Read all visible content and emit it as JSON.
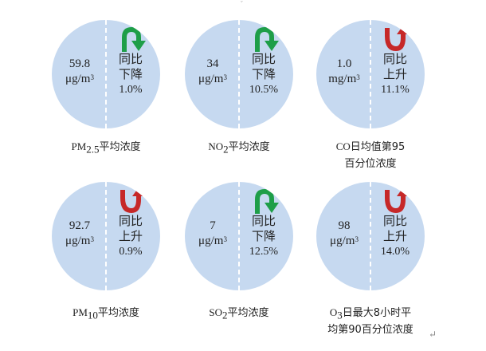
{
  "colors": {
    "circle": "#c6d9f0",
    "down_arrow": "#1e9e48",
    "up_arrow": "#c62828",
    "divider": "#ffffff"
  },
  "change_label": "同比",
  "down_text": "下降",
  "up_text": "上升",
  "items": [
    {
      "value": "59.8",
      "unit": "μg/m",
      "unit_sup": "3",
      "direction": "down",
      "pct": "1.0%",
      "label_pre": "PM",
      "label_sub": "2.5",
      "label_post": "平均浓度",
      "label_line2": ""
    },
    {
      "value": "34",
      "unit": "μg/m",
      "unit_sup": "3",
      "direction": "down",
      "pct": "10.5%",
      "label_pre": "NO",
      "label_sub": "2",
      "label_post": "平均浓度",
      "label_line2": ""
    },
    {
      "value": "1.0",
      "unit": "mg/m",
      "unit_sup": "3",
      "direction": "up",
      "pct": "11.1%",
      "label_pre": "CO",
      "label_sub": "",
      "label_post": "日均值第95",
      "label_line2": "百分位浓度"
    },
    {
      "value": "92.7",
      "unit": "μg/m",
      "unit_sup": "3",
      "direction": "up",
      "pct": "0.9%",
      "label_pre": "PM",
      "label_sub": "10",
      "label_post": "平均浓度",
      "label_line2": ""
    },
    {
      "value": "7",
      "unit": "μg/m",
      "unit_sup": "3",
      "direction": "down",
      "pct": "12.5%",
      "label_pre": "SO",
      "label_sub": "2",
      "label_post": "平均浓度",
      "label_line2": ""
    },
    {
      "value": "98",
      "unit": "μg/m",
      "unit_sup": "3",
      "direction": "up",
      "pct": "14.0%",
      "label_pre": "O",
      "label_sub": "3",
      "label_post": "日最大8小时平",
      "label_line2": "均第90百分位浓度"
    }
  ],
  "return_mark": "↵"
}
